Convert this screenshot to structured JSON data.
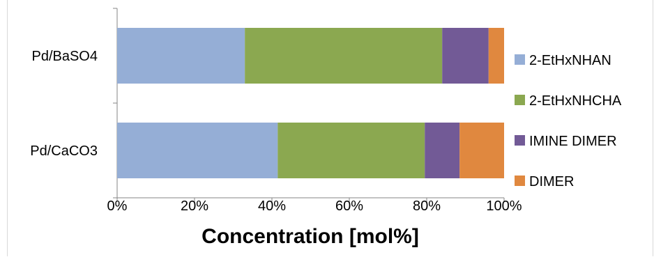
{
  "chart_data": {
    "type": "bar",
    "orientation": "horizontal",
    "stacked": true,
    "normalized": true,
    "categories": [
      "Pd/BaSO4",
      "Pd/CaCO3"
    ],
    "series": [
      {
        "name": "2-EtHxNHAN",
        "color": "#95aed6",
        "values": [
          33,
          41.5
        ]
      },
      {
        "name": "2-EtHxNHCHA",
        "color": "#8ba850",
        "values": [
          51,
          38
        ]
      },
      {
        "name": "IMINE DIMER",
        "color": "#725a96",
        "values": [
          12,
          9
        ]
      },
      {
        "name": "DIMER",
        "color": "#e0883f",
        "values": [
          4,
          11.5
        ]
      }
    ],
    "xlabel": "Concentration [mol%]",
    "ylabel": "",
    "xlim": [
      0,
      100
    ],
    "xticks": [
      "0%",
      "20%",
      "40%",
      "60%",
      "80%",
      "100%"
    ],
    "grid": false,
    "legend_position": "right"
  }
}
